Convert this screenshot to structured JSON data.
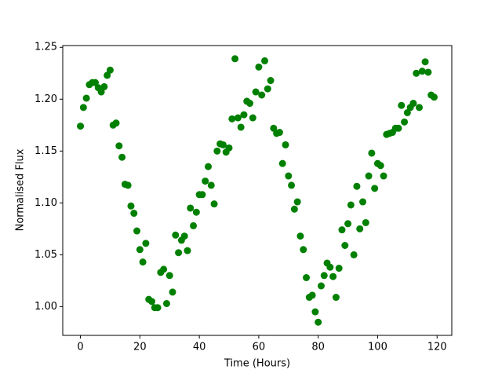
{
  "chart_data": {
    "type": "scatter",
    "x_label": "Time (Hours)",
    "y_label": "Normalised Flux",
    "color": "#008000",
    "x": [
      0,
      1,
      2,
      3,
      4,
      5,
      6,
      7,
      8,
      9,
      10,
      11,
      12,
      13,
      14,
      15,
      16,
      17,
      18,
      19,
      20,
      21,
      22,
      23,
      24,
      25,
      26,
      27,
      28,
      29,
      30,
      31,
      32,
      33,
      34,
      35,
      36,
      37,
      38,
      39,
      40,
      41,
      42,
      43,
      44,
      45,
      46,
      47,
      48,
      49,
      50,
      51,
      52,
      53,
      54,
      55,
      56,
      57,
      58,
      59,
      60,
      61,
      62,
      63,
      64,
      65,
      66,
      67,
      68,
      69,
      70,
      71,
      72,
      73,
      74,
      75,
      76,
      77,
      78,
      79,
      80,
      81,
      82,
      83,
      84,
      85,
      86,
      87,
      88,
      89,
      90,
      91,
      92,
      93,
      94,
      95,
      96,
      97,
      98,
      99,
      100,
      101,
      102,
      103,
      104,
      105,
      106,
      107,
      108,
      109,
      110,
      111,
      112,
      113,
      114,
      115,
      116,
      117,
      118,
      119
    ],
    "values": [
      1.174,
      1.192,
      1.201,
      1.214,
      1.216,
      1.216,
      1.211,
      1.207,
      1.212,
      1.223,
      1.228,
      1.175,
      1.177,
      1.155,
      1.144,
      1.118,
      1.117,
      1.097,
      1.09,
      1.073,
      1.055,
      1.043,
      1.061,
      1.007,
      1.005,
      0.999,
      0.999,
      1.033,
      1.036,
      1.003,
      1.03,
      1.014,
      1.069,
      1.052,
      1.064,
      1.068,
      1.054,
      1.095,
      1.078,
      1.091,
      1.108,
      1.108,
      1.121,
      1.135,
      1.117,
      1.099,
      1.15,
      1.157,
      1.156,
      1.149,
      1.153,
      1.181,
      1.239,
      1.182,
      1.173,
      1.185,
      1.198,
      1.196,
      1.182,
      1.207,
      1.231,
      1.204,
      1.237,
      1.21,
      1.218,
      1.172,
      1.167,
      1.168,
      1.138,
      1.156,
      1.126,
      1.117,
      1.094,
      1.101,
      1.068,
      1.055,
      1.028,
      1.009,
      1.011,
      0.995,
      0.985,
      1.02,
      1.03,
      1.042,
      1.038,
      1.029,
      1.009,
      1.037,
      1.074,
      1.059,
      1.08,
      1.098,
      1.05,
      1.116,
      1.075,
      1.101,
      1.081,
      1.126,
      1.148,
      1.114,
      1.138,
      1.136,
      1.126,
      1.166,
      1.167,
      1.168,
      1.172,
      1.172,
      1.194,
      1.178,
      1.187,
      1.192,
      1.196,
      1.225,
      1.192,
      1.227,
      1.236,
      1.226,
      1.204,
      1.202
    ],
    "xlim": [
      -5.95,
      124.95
    ],
    "xticks": [
      0,
      20,
      40,
      60,
      80,
      100,
      120
    ],
    "ylim": [
      0.9723,
      1.2517
    ],
    "yticks": [
      {
        "value": 1.0,
        "label": "1.00"
      },
      1.05,
      {
        "value": 1.1,
        "label": "1.10"
      },
      1.15,
      {
        "value": 1.2,
        "label": "1.20"
      },
      1.25
    ]
  }
}
